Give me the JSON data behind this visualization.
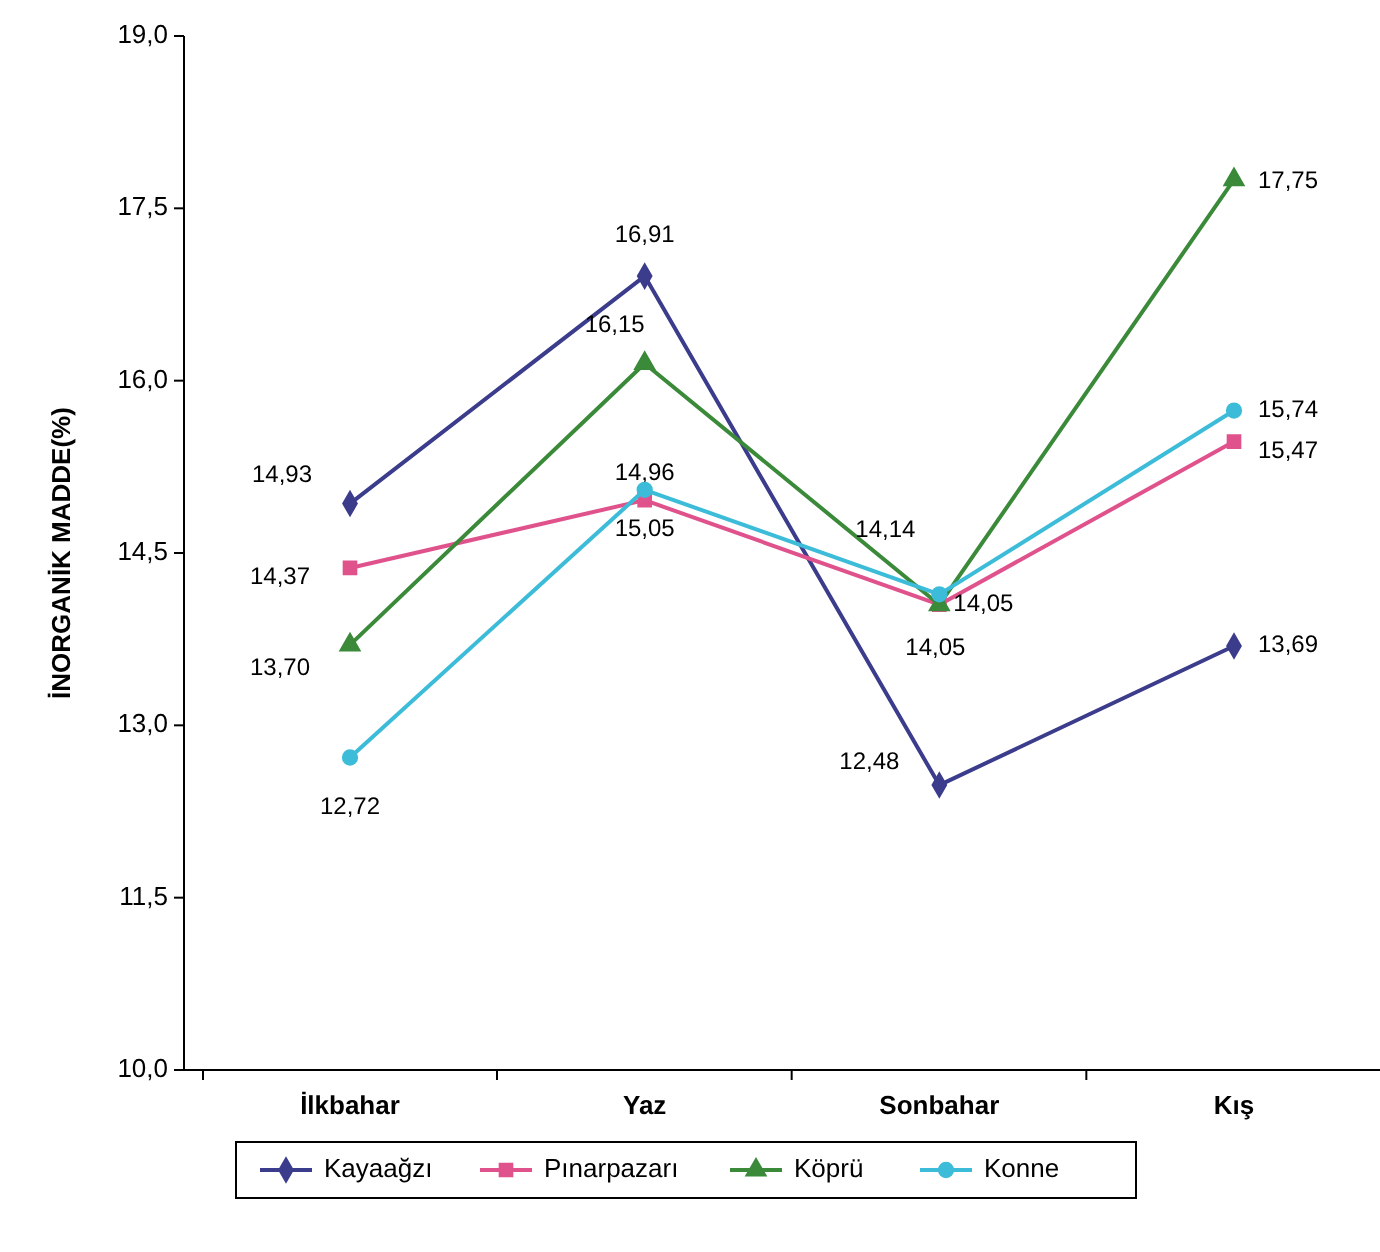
{
  "chart_data": {
    "type": "line",
    "ylabel": "İNORGANİK MADDE(%)",
    "categories": [
      "İlkbahar",
      "Yaz",
      "Sonbahar",
      "Kış"
    ],
    "ylim": [
      10,
      19
    ],
    "yticks": [
      {
        "value": 10,
        "label": "10,0"
      },
      {
        "value": 11.5,
        "label": "11,5"
      },
      {
        "value": 13,
        "label": "13,0"
      },
      {
        "value": 14.5,
        "label": "14,5"
      },
      {
        "value": 16,
        "label": "16,0"
      },
      {
        "value": 17.5,
        "label": "17,5"
      },
      {
        "value": 19,
        "label": "19,0"
      }
    ],
    "grid": false,
    "legend": "bottom",
    "line_style": "solid",
    "series": [
      {
        "name": "Kayaağzı",
        "color": "#3c3c8c",
        "marker": "diamond",
        "values": [
          14.93,
          16.91,
          12.48,
          13.69
        ],
        "value_labels": [
          "14,93",
          "16,91",
          "12,48",
          "13,69"
        ]
      },
      {
        "name": "Pınarpazarı",
        "color": "#e0528c",
        "marker": "square",
        "values": [
          14.37,
          14.96,
          14.05,
          15.47
        ],
        "value_labels": [
          "14,37",
          "14,96",
          "14,05",
          "15,47"
        ]
      },
      {
        "name": "Köprü",
        "color": "#3a8a3a",
        "marker": "triangle",
        "values": [
          13.7,
          16.15,
          14.05,
          17.75
        ],
        "value_labels": [
          "13,70",
          "16,15",
          "14,05",
          "17,75"
        ]
      },
      {
        "name": "Konne",
        "color": "#3cbcd8",
        "marker": "circle",
        "values": [
          12.72,
          15.05,
          14.14,
          15.74
        ],
        "value_labels": [
          "12,72",
          "15,05",
          "14,14",
          "15,74"
        ]
      }
    ]
  }
}
